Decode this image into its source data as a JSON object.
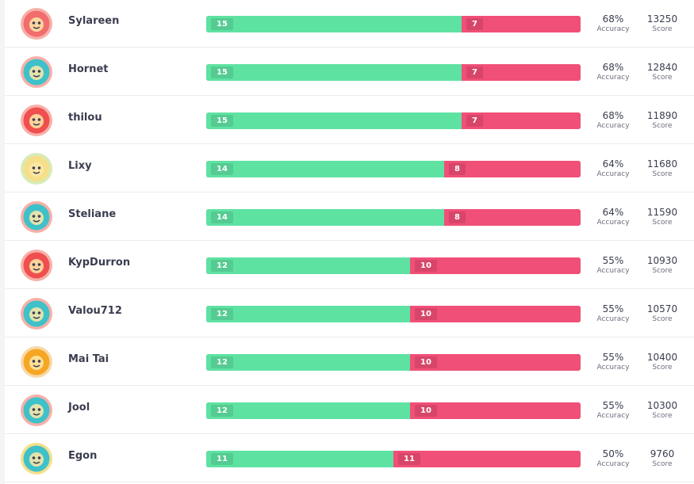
{
  "labels": {
    "accuracy": "Accuracy",
    "score": "Score"
  },
  "colors": {
    "correct": "#5ee2a2",
    "wrong": "#f04f77",
    "text": "#3a3d4f"
  },
  "players": [
    {
      "name": "Sylareen",
      "correct": 15,
      "wrong": 7,
      "accuracy": "68%",
      "score": "13250",
      "avatar": "cat-face-avatar-icon",
      "bg": "#f26d6d",
      "ring": "#f7b0a8"
    },
    {
      "name": "Hornet",
      "correct": 15,
      "wrong": 7,
      "accuracy": "68%",
      "score": "12840",
      "avatar": "pizza-slice-avatar-icon",
      "bg": "#3fc1c9",
      "ring": "#f7b0a8"
    },
    {
      "name": "thilou",
      "correct": 15,
      "wrong": 7,
      "accuracy": "68%",
      "score": "11890",
      "avatar": "camera-avatar-icon",
      "bg": "#ef4f4f",
      "ring": "#f7b0a8"
    },
    {
      "name": "Lixy",
      "correct": 14,
      "wrong": 8,
      "accuracy": "64%",
      "score": "11680",
      "avatar": "monster-cake-avatar-icon",
      "bg": "#f5df8a",
      "ring": "#d6ecb8"
    },
    {
      "name": "Steliane",
      "correct": 14,
      "wrong": 8,
      "accuracy": "64%",
      "score": "11590",
      "avatar": "brain-avatar-icon",
      "bg": "#3fc1c9",
      "ring": "#f7b0a8"
    },
    {
      "name": "KypDurron",
      "correct": 12,
      "wrong": 10,
      "accuracy": "55%",
      "score": "10930",
      "avatar": "camera-avatar-icon",
      "bg": "#ef4f4f",
      "ring": "#f7b0a8"
    },
    {
      "name": "Valou712",
      "correct": 12,
      "wrong": 10,
      "accuracy": "55%",
      "score": "10570",
      "avatar": "donut-avatar-icon",
      "bg": "#3fc1c9",
      "ring": "#f7b0a8"
    },
    {
      "name": "Mai Tai",
      "correct": 12,
      "wrong": 10,
      "accuracy": "55%",
      "score": "10400",
      "avatar": "robot-face-avatar-icon",
      "bg": "#f5a623",
      "ring": "#f7d9a8"
    },
    {
      "name": "Jool",
      "correct": 12,
      "wrong": 10,
      "accuracy": "55%",
      "score": "10300",
      "avatar": "lightbulb-avatar-icon",
      "bg": "#3fc1c9",
      "ring": "#f7b0a8"
    },
    {
      "name": "Egon",
      "correct": 11,
      "wrong": 11,
      "accuracy": "50%",
      "score": "9760",
      "avatar": "fox-face-avatar-icon",
      "bg": "#3fc1c9",
      "ring": "#f5df8a"
    }
  ]
}
